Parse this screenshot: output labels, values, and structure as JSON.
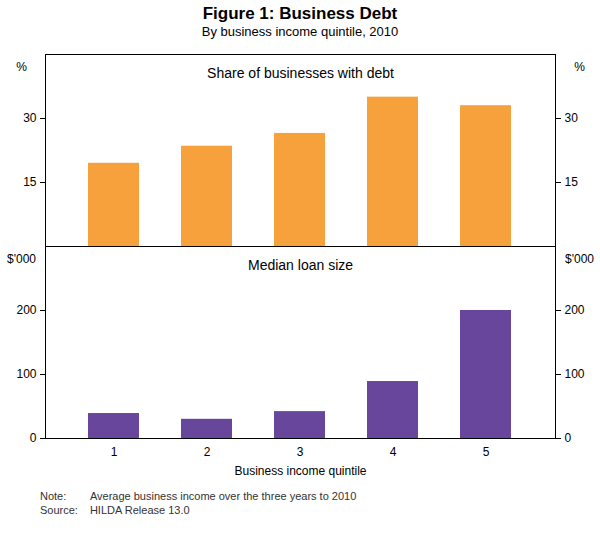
{
  "title": "Figure 1: Business Debt",
  "subtitle": "By business income quintile, 2010",
  "chart_data": [
    {
      "type": "bar",
      "title": "Share of businesses with debt",
      "ylabel": "%",
      "categories": [
        "1",
        "2",
        "3",
        "4",
        "5"
      ],
      "values": [
        19.5,
        23.5,
        26.5,
        35,
        33
      ],
      "color": "#f7a13c",
      "ylim": [
        0,
        45
      ],
      "yticks": [
        15,
        30
      ],
      "grid": false,
      "tick_labels": "y"
    },
    {
      "type": "bar",
      "title": "Median loan size",
      "ylabel": "$'000",
      "xlabel": "Business income quintile",
      "categories": [
        "1",
        "2",
        "3",
        "4",
        "5"
      ],
      "values": [
        39,
        30,
        42,
        89,
        200
      ],
      "color": "#67469c",
      "ylim": [
        0,
        300
      ],
      "yticks": [
        0,
        100,
        200
      ],
      "grid": false,
      "tick_labels": true
    }
  ],
  "notes": [
    {
      "label": "Note:",
      "text": "Average business income over the three years to 2010"
    },
    {
      "label": "Source:",
      "text": "HILDA Release 13.0"
    }
  ]
}
